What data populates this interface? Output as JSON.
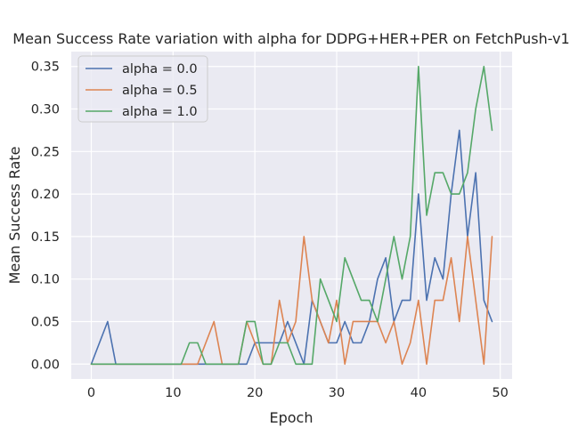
{
  "chart_data": {
    "type": "line",
    "title": "Mean Success Rate variation with alpha for DDPG+HER+PER on FetchPush-v1",
    "xlabel": "Epoch",
    "ylabel": "Mean Success Rate",
    "xlim": [
      -2.45,
      51.45
    ],
    "ylim": [
      -0.0175,
      0.3675
    ],
    "xticks": [
      0,
      10,
      20,
      30,
      40,
      50
    ],
    "yticks": [
      0.0,
      0.05,
      0.1,
      0.15,
      0.2,
      0.25,
      0.3,
      0.35
    ],
    "xtick_labels": [
      "0",
      "10",
      "20",
      "30",
      "40",
      "50"
    ],
    "ytick_labels": [
      "0.00",
      "0.05",
      "0.10",
      "0.15",
      "0.20",
      "0.25",
      "0.30",
      "0.35"
    ],
    "grid": true,
    "legend_position": "top-left",
    "background_color": "#eaeaf2",
    "x": [
      0,
      1,
      2,
      3,
      4,
      5,
      6,
      7,
      8,
      9,
      10,
      11,
      12,
      13,
      14,
      15,
      16,
      17,
      18,
      19,
      20,
      21,
      22,
      23,
      24,
      25,
      26,
      27,
      28,
      29,
      30,
      31,
      32,
      33,
      34,
      35,
      36,
      37,
      38,
      39,
      40,
      41,
      42,
      43,
      44,
      45,
      46,
      47,
      48,
      49
    ],
    "series": [
      {
        "name": "alpha = 0.0",
        "color": "#4c72b0",
        "values": [
          0,
          0.025,
          0.05,
          0,
          0,
          0,
          0,
          0,
          0,
          0,
          0,
          0,
          0,
          0,
          0,
          0,
          0,
          0,
          0,
          0,
          0.025,
          0.025,
          0.025,
          0.025,
          0.05,
          0.025,
          0,
          0.075,
          0.05,
          0.025,
          0.025,
          0.05,
          0.025,
          0.025,
          0.05,
          0.1,
          0.125,
          0.05,
          0.075,
          0.075,
          0.2,
          0.075,
          0.125,
          0.1,
          0.2,
          0.275,
          0.15,
          0.225,
          0.075,
          0.05
        ]
      },
      {
        "name": "alpha = 0.5",
        "color": "#dd8452",
        "values": [
          0,
          0,
          0,
          0,
          0,
          0,
          0,
          0,
          0,
          0,
          0,
          0,
          0,
          0,
          0.025,
          0.05,
          0,
          0,
          0,
          0.05,
          0.025,
          0,
          0,
          0.075,
          0.025,
          0.05,
          0.15,
          0.075,
          0.05,
          0.025,
          0.075,
          0,
          0.05,
          0.05,
          0.05,
          0.05,
          0.025,
          0.05,
          0,
          0.025,
          0.075,
          0,
          0.075,
          0.075,
          0.125,
          0.05,
          0.15,
          0.075,
          0,
          0.15
        ]
      },
      {
        "name": "alpha = 1.0",
        "color": "#55a868",
        "values": [
          0,
          0,
          0,
          0,
          0,
          0,
          0,
          0,
          0,
          0,
          0,
          0,
          0.025,
          0.025,
          0,
          0,
          0,
          0,
          0,
          0.05,
          0.05,
          0,
          0,
          0.025,
          0.025,
          0,
          0,
          0,
          0.1,
          0.075,
          0.05,
          0.125,
          0.1,
          0.075,
          0.075,
          0.05,
          0.1,
          0.15,
          0.1,
          0.15,
          0.35,
          0.175,
          0.225,
          0.225,
          0.2,
          0.2,
          0.225,
          0.3,
          0.35,
          0.275
        ]
      }
    ]
  }
}
